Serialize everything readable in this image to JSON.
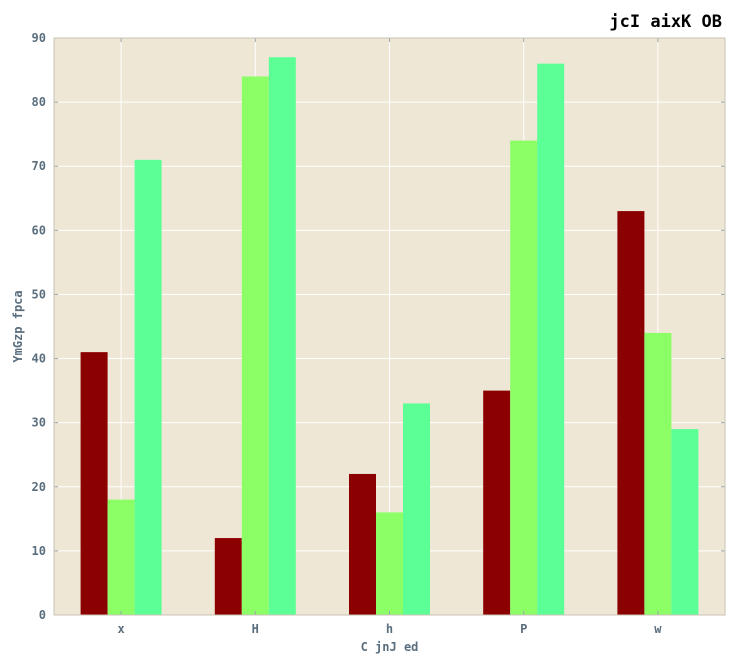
{
  "chart_data": {
    "type": "bar",
    "title": "jcI aixK OB",
    "xlabel": "C jnJ ed",
    "ylabel": "YmGzp fpca",
    "categories": [
      "x",
      "H",
      "h",
      "P",
      "w"
    ],
    "series": [
      {
        "values": [
          41,
          12,
          22,
          35,
          63
        ],
        "color": "#8b0000"
      },
      {
        "values": [
          18,
          84,
          16,
          74,
          44
        ],
        "color": "#8cff66"
      },
      {
        "values": [
          71,
          87,
          33,
          86,
          29
        ],
        "color": "#5cff96"
      }
    ],
    "ylim": [
      0,
      90
    ],
    "yticks": [
      0,
      10,
      20,
      30,
      40,
      50,
      60,
      70,
      80,
      90
    ],
    "grid": true,
    "background": "#efe7d5",
    "grid_color": "#ffffff"
  }
}
